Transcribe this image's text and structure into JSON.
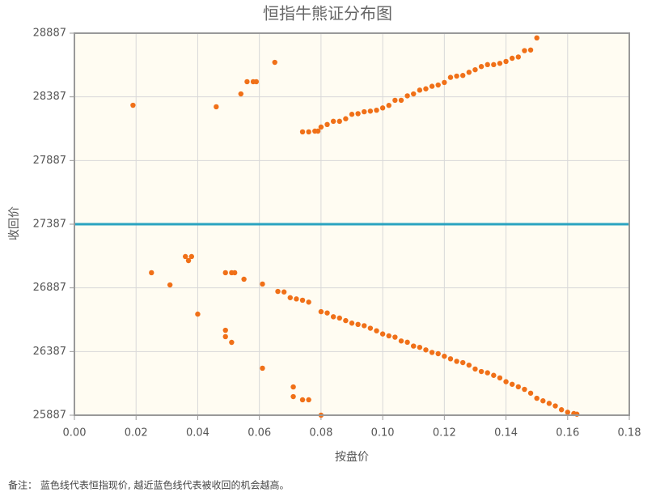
{
  "chart_data": {
    "type": "scatter",
    "title": "恒指牛熊证分布图",
    "xlabel": "按盘价",
    "ylabel": "收回价",
    "note": "备注： 蓝色线代表恒指现价, 越近蓝色线代表被收回的机会越高。",
    "color": "#f07018",
    "grid": true,
    "reference_line": {
      "value": 27387,
      "color": "#2aa3c0"
    },
    "xlim": [
      0,
      0.18
    ],
    "ylim": [
      25887,
      28887
    ],
    "xticks": [
      {
        "value": 0,
        "label": "0.00"
      },
      0.02,
      0.04,
      0.06,
      0.08,
      {
        "value": 0.1,
        "label": "0.10"
      },
      0.12,
      0.14,
      0.16,
      0.18
    ],
    "yticks": [
      25887,
      26387,
      26887,
      27387,
      27887,
      28387,
      28887
    ],
    "x": [
      0.019,
      0.046,
      0.054,
      0.056,
      0.058,
      0.059,
      0.065,
      0.074,
      0.076,
      0.078,
      0.079,
      0.08,
      0.082,
      0.084,
      0.086,
      0.088,
      0.09,
      0.092,
      0.094,
      0.096,
      0.098,
      0.1,
      0.102,
      0.104,
      0.106,
      0.108,
      0.11,
      0.112,
      0.114,
      0.116,
      0.118,
      0.12,
      0.122,
      0.124,
      0.126,
      0.128,
      0.13,
      0.132,
      0.134,
      0.136,
      0.138,
      0.14,
      0.142,
      0.144,
      0.146,
      0.148,
      0.15,
      0.025,
      0.031,
      0.036,
      0.038,
      0.037,
      0.04,
      0.049,
      0.051,
      0.052,
      0.055,
      0.061,
      0.049,
      0.049,
      0.051,
      0.061,
      0.071,
      0.071,
      0.074,
      0.076,
      0.08,
      0.066,
      0.068,
      0.07,
      0.072,
      0.074,
      0.076,
      0.08,
      0.082,
      0.084,
      0.086,
      0.088,
      0.09,
      0.092,
      0.094,
      0.096,
      0.098,
      0.1,
      0.102,
      0.104,
      0.106,
      0.108,
      0.11,
      0.112,
      0.114,
      0.116,
      0.118,
      0.12,
      0.122,
      0.124,
      0.126,
      0.128,
      0.13,
      0.132,
      0.134,
      0.136,
      0.138,
      0.14,
      0.142,
      0.144,
      0.146,
      0.148,
      0.15,
      0.152,
      0.154,
      0.156,
      0.158,
      0.16,
      0.162,
      0.163
    ],
    "values": [
      28321,
      28309,
      28410,
      28506,
      28506,
      28506,
      28658,
      28112,
      28112,
      28118,
      28118,
      28150,
      28170,
      28195,
      28195,
      28215,
      28250,
      28255,
      28270,
      28275,
      28282,
      28300,
      28320,
      28360,
      28360,
      28395,
      28410,
      28440,
      28450,
      28470,
      28480,
      28500,
      28540,
      28550,
      28555,
      28580,
      28600,
      28625,
      28640,
      28640,
      28650,
      28665,
      28690,
      28700,
      28750,
      28755,
      28850,
      27006,
      26910,
      27133,
      27133,
      27101,
      26681,
      27006,
      27006,
      27006,
      26955,
      26917,
      26554,
      26504,
      26459,
      26256,
      26109,
      26033,
      26008,
      26008,
      25887,
      26859,
      26855,
      26810,
      26800,
      26790,
      26775,
      26700,
      26690,
      26660,
      26650,
      26630,
      26610,
      26600,
      26590,
      26570,
      26550,
      26525,
      26510,
      26500,
      26470,
      26460,
      26430,
      26420,
      26400,
      26380,
      26370,
      26350,
      26330,
      26310,
      26300,
      26280,
      26250,
      26230,
      26220,
      26200,
      26180,
      26150,
      26130,
      26110,
      26090,
      26060,
      26020,
      26000,
      25980,
      25960,
      25930,
      25910,
      25900,
      25895
    ]
  }
}
